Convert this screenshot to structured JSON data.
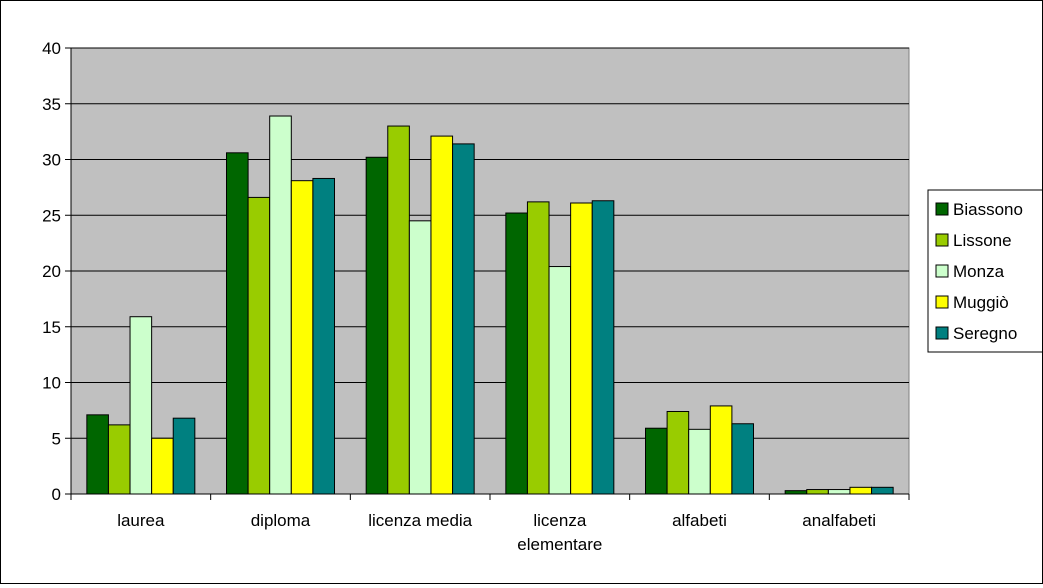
{
  "chart_data": {
    "type": "bar",
    "title": "",
    "xlabel": "",
    "ylabel": "",
    "ylim": [
      0,
      40
    ],
    "yticks": [
      0,
      5,
      10,
      15,
      20,
      25,
      30,
      35,
      40
    ],
    "grid": true,
    "legend_position": "right",
    "plot_background": "#C0C0C0",
    "categories": [
      [
        "laurea"
      ],
      [
        "diploma"
      ],
      [
        "licenza media"
      ],
      [
        "licenza",
        "elementare"
      ],
      [
        "alfabeti"
      ],
      [
        "analfabeti"
      ]
    ],
    "series": [
      {
        "name": "Biassono",
        "color": "#006600",
        "values": [
          7.1,
          30.6,
          30.2,
          25.2,
          5.9,
          0.3
        ]
      },
      {
        "name": "Lissone",
        "color": "#99CC00",
        "values": [
          6.2,
          26.6,
          33.0,
          26.2,
          7.4,
          0.4
        ]
      },
      {
        "name": "Monza",
        "color": "#CCFFCC",
        "values": [
          15.9,
          33.9,
          24.5,
          20.4,
          5.8,
          0.4
        ]
      },
      {
        "name": "Muggiò",
        "color": "#FFFF00",
        "values": [
          5.0,
          28.1,
          32.1,
          26.1,
          7.9,
          0.6
        ]
      },
      {
        "name": "Seregno",
        "color": "#008080",
        "values": [
          6.8,
          28.3,
          31.4,
          26.3,
          6.3,
          0.6
        ]
      }
    ]
  }
}
